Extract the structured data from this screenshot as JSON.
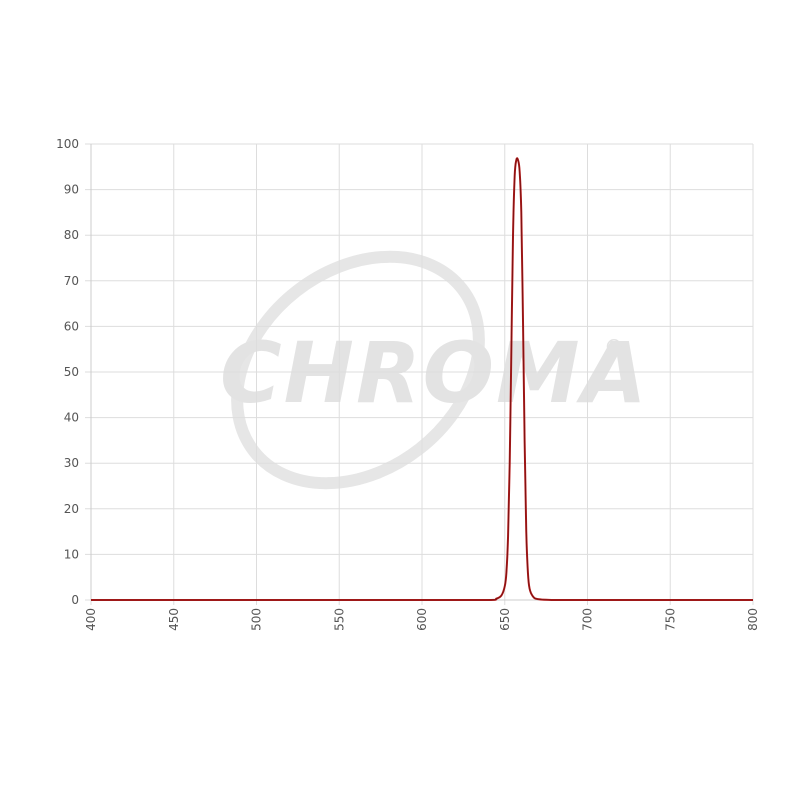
{
  "chart_data": {
    "type": "line",
    "title": "",
    "xlabel": "",
    "ylabel": "",
    "xlim": [
      400,
      800
    ],
    "ylim": [
      0,
      100
    ],
    "x_ticks": [
      400,
      450,
      500,
      550,
      600,
      650,
      700,
      750,
      800
    ],
    "y_ticks": [
      0,
      10,
      20,
      30,
      40,
      50,
      60,
      70,
      80,
      90,
      100
    ],
    "grid": true,
    "legend": "none",
    "series": [
      {
        "color": "#b71c1c",
        "x": [
          400,
          600,
          640,
          645,
          648,
          650,
          651,
          652,
          653,
          654,
          655,
          656,
          657,
          658,
          659,
          660,
          661,
          662,
          663,
          664,
          665,
          667,
          670,
          680,
          700,
          800
        ],
        "y": [
          0,
          0,
          0,
          0.3,
          1,
          3,
          6,
          14,
          30,
          55,
          80,
          93,
          96.5,
          96.5,
          94,
          85,
          62,
          35,
          15,
          6,
          2.5,
          0.8,
          0.2,
          0,
          0,
          0
        ]
      }
    ]
  },
  "watermark": {
    "brand": "CHROMA",
    "registered": "®",
    "color": "#e3e3e3"
  }
}
